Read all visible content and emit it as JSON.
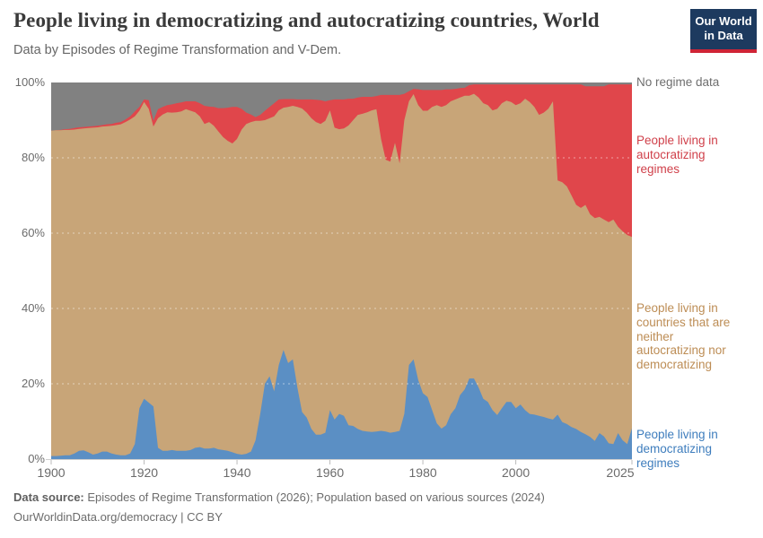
{
  "header": {
    "title": "People living in democratizing and autocratizing countries, World",
    "subtitle": "Data by Episodes of Regime Transformation and V-Dem.",
    "logo": {
      "line1": "Our World",
      "line2": "in Data",
      "brand_navy": "#1d3a5f",
      "brand_red": "#cf2436"
    }
  },
  "chart_data": {
    "type": "area",
    "stacked": true,
    "unit": "%",
    "title": "People living in democratizing and autocratizing countries, World",
    "xlabel": "",
    "ylabel": "",
    "xlim": [
      1900,
      2025
    ],
    "ylim": [
      0,
      100
    ],
    "x_start": 1900,
    "x_step": 1,
    "grid": "dashed-horizontal",
    "legend_position": "right",
    "values_are": "cumulative_percent_top_of_each_stacked_band_per_year_1900_to_2025",
    "series": [
      {
        "key": "democratizing",
        "name": "People living in democratizing regimes",
        "color": "#5b8fc4",
        "label_color": "#3e7dbd",
        "values_top": [
          0.8,
          0.8,
          0.9,
          1.0,
          1.0,
          1.5,
          2.2,
          2.3,
          1.8,
          1.2,
          1.5,
          2.0,
          2.0,
          1.5,
          1.2,
          1.0,
          1.0,
          1.5,
          4.0,
          13.5,
          16.0,
          15.0,
          14.0,
          3.0,
          2.2,
          2.2,
          2.4,
          2.2,
          2.2,
          2.2,
          2.4,
          3.0,
          3.2,
          2.8,
          2.8,
          3.0,
          2.6,
          2.4,
          2.2,
          1.8,
          1.4,
          1.2,
          1.4,
          2.0,
          5.0,
          12.0,
          20.0,
          22.0,
          18.0,
          25.0,
          29.0,
          25.5,
          26.5,
          19.0,
          12.5,
          11.0,
          8.0,
          6.5,
          6.5,
          7.0,
          13.0,
          10.5,
          12.0,
          11.5,
          9.0,
          8.8,
          8.0,
          7.5,
          7.3,
          7.2,
          7.3,
          7.5,
          7.3,
          7.0,
          7.2,
          7.5,
          12.0,
          25.0,
          26.5,
          21.0,
          17.5,
          16.5,
          13.0,
          9.5,
          8.1,
          9.0,
          11.9,
          13.5,
          17.0,
          18.5,
          21.4,
          21.4,
          19.0,
          16.0,
          15.2,
          13.0,
          11.7,
          13.5,
          15.2,
          15.2,
          13.5,
          14.5,
          13.0,
          12.0,
          11.8,
          11.5,
          11.2,
          10.8,
          10.5,
          11.8,
          9.8,
          9.3,
          8.5,
          8.0,
          7.2,
          6.6,
          5.9,
          4.8,
          6.9,
          6.0,
          4.2,
          4.0,
          6.9,
          5.0,
          4.0,
          8.2
        ]
      },
      {
        "key": "neither",
        "name": "People living in countries that are neither autocratizing nor democratizing",
        "color": "#c8a578",
        "label_color": "#bd8d55",
        "values_top": [
          87.2,
          87.3,
          87.3,
          87.4,
          87.4,
          87.5,
          87.7,
          87.8,
          87.9,
          88.0,
          88.1,
          88.3,
          88.4,
          88.5,
          88.7,
          88.9,
          89.5,
          90.2,
          91.0,
          92.5,
          94.8,
          93.0,
          88.3,
          90.5,
          91.5,
          92.1,
          92.0,
          92.1,
          92.3,
          92.9,
          92.5,
          92.1,
          91.0,
          89.0,
          89.5,
          88.5,
          87.0,
          85.5,
          84.5,
          83.8,
          85.0,
          87.5,
          89.0,
          89.5,
          89.8,
          89.8,
          90.0,
          90.5,
          91.0,
          92.6,
          93.3,
          93.5,
          93.8,
          93.5,
          93.1,
          92.0,
          90.5,
          89.5,
          89.0,
          89.8,
          92.6,
          88.0,
          87.6,
          87.8,
          88.6,
          90.0,
          91.4,
          91.7,
          92.1,
          92.6,
          92.9,
          85.0,
          79.5,
          79.0,
          84.0,
          78.5,
          90.0,
          95.0,
          96.9,
          94.0,
          92.5,
          92.5,
          93.5,
          94.0,
          93.5,
          94.0,
          95.0,
          95.5,
          96.0,
          96.5,
          96.5,
          97.0,
          96.0,
          94.5,
          94.0,
          92.6,
          93.0,
          94.5,
          95.2,
          94.8,
          94.0,
          94.5,
          95.7,
          94.8,
          93.5,
          91.4,
          92.0,
          93.0,
          95.0,
          74.0,
          73.5,
          72.4,
          70.0,
          67.5,
          66.7,
          67.5,
          65.0,
          64.0,
          64.3,
          63.6,
          62.9,
          63.6,
          61.7,
          60.5,
          59.5,
          59.0
        ]
      },
      {
        "key": "autocratizing",
        "name": "People living in autocratizing regimes",
        "color": "#e0464b",
        "label_color": "#d0404a",
        "values_top": [
          87.2,
          87.3,
          87.4,
          87.6,
          87.7,
          87.9,
          88.1,
          88.2,
          88.3,
          88.4,
          88.5,
          88.7,
          88.9,
          89.0,
          89.3,
          89.5,
          90.2,
          91.0,
          92.3,
          93.5,
          95.5,
          95.3,
          89.8,
          92.9,
          93.5,
          94.0,
          94.2,
          94.5,
          94.7,
          95.0,
          95.0,
          95.0,
          94.5,
          93.8,
          93.6,
          93.5,
          93.2,
          93.2,
          93.3,
          93.5,
          93.5,
          93.0,
          92.0,
          91.5,
          90.8,
          91.4,
          92.5,
          93.5,
          94.5,
          95.5,
          95.6,
          95.6,
          95.6,
          95.5,
          95.5,
          95.5,
          95.5,
          95.4,
          95.3,
          95.0,
          95.3,
          95.5,
          95.5,
          95.5,
          95.7,
          95.7,
          96.0,
          96.2,
          96.2,
          96.2,
          96.4,
          96.7,
          96.7,
          96.7,
          96.7,
          96.7,
          97.0,
          97.7,
          98.3,
          98.2,
          98.0,
          98.0,
          98.0,
          98.0,
          98.0,
          98.2,
          98.2,
          98.3,
          98.5,
          98.6,
          99.3,
          99.5,
          99.5,
          99.5,
          99.5,
          99.5,
          99.5,
          99.5,
          99.5,
          99.5,
          99.5,
          99.5,
          99.5,
          99.5,
          99.5,
          99.5,
          99.5,
          99.5,
          99.5,
          99.5,
          99.5,
          99.5,
          99.5,
          99.5,
          99.5,
          99.0,
          99.0,
          99.0,
          99.0,
          99.0,
          99.5,
          99.5,
          99.5,
          99.5,
          99.5,
          99.5
        ]
      },
      {
        "key": "no-regime-data",
        "name": "No regime data",
        "color": "#818181",
        "label_color": "#6e6e6e",
        "values_top_constant": 100
      }
    ],
    "gridlines_pct": [
      20,
      40,
      60,
      80
    ],
    "y_ticks": [
      {
        "pct": 0,
        "label": "0%"
      },
      {
        "pct": 20,
        "label": "20%"
      },
      {
        "pct": 40,
        "label": "40%"
      },
      {
        "pct": 60,
        "label": "60%"
      },
      {
        "pct": 80,
        "label": "80%"
      },
      {
        "pct": 100,
        "label": "100%"
      }
    ],
    "x_ticks": [
      {
        "year": 1900,
        "label": "1900"
      },
      {
        "year": 1920,
        "label": "1920"
      },
      {
        "year": 1940,
        "label": "1940"
      },
      {
        "year": 1960,
        "label": "1960"
      },
      {
        "year": 1980,
        "label": "1980"
      },
      {
        "year": 2000,
        "label": "2000"
      },
      {
        "year": 2025,
        "label": "2025"
      }
    ]
  },
  "footer": {
    "source_label": "Data source:",
    "source_text": " Episodes of Regime Transformation (2026); Population based on various sources (2024)",
    "url": "OurWorldinData.org/democracy",
    "separator": " | ",
    "license": "CC BY"
  }
}
